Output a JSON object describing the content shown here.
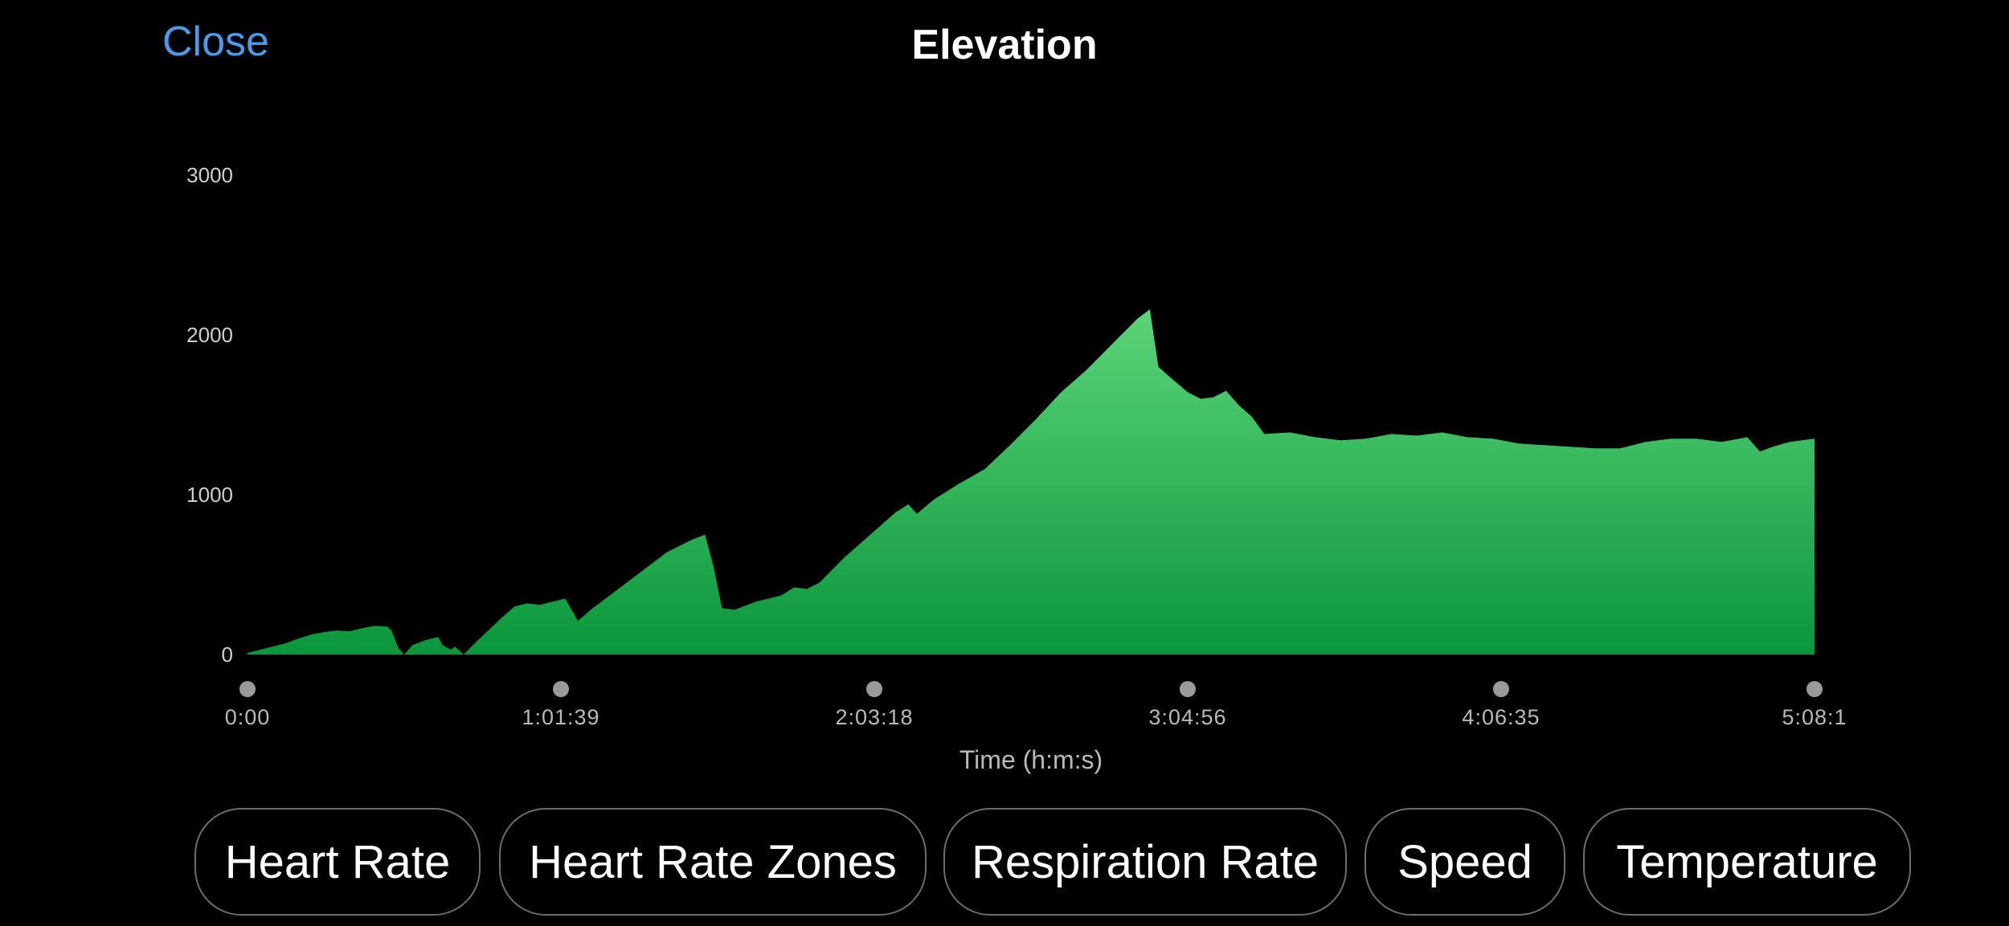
{
  "header": {
    "close_label": "Close",
    "title": "Elevation"
  },
  "tabs": [
    {
      "label": "Heart Rate"
    },
    {
      "label": "Heart Rate Zones"
    },
    {
      "label": "Respiration Rate"
    },
    {
      "label": "Speed"
    },
    {
      "label": "Temperature"
    }
  ],
  "colors": {
    "accent": "#4a9bea",
    "fill_top": "#5cd479",
    "fill_bottom": "#0b963c",
    "marker": "#9a9a9a"
  },
  "chart_data": {
    "type": "area",
    "title": "",
    "xlabel": "Time (h:m:s)",
    "ylabel": "",
    "ylim": [
      0,
      3000
    ],
    "yticks": [
      0,
      1000,
      2000,
      3000
    ],
    "xticks": [
      {
        "t": 0,
        "label": "0:00"
      },
      {
        "t": 3699,
        "label": "1:01:39"
      },
      {
        "t": 7398,
        "label": "2:03:18"
      },
      {
        "t": 11096,
        "label": "3:04:56"
      },
      {
        "t": 14795,
        "label": "4:06:35"
      },
      {
        "t": 18494,
        "label": "5:08:1"
      }
    ],
    "xlim": [
      0,
      18494
    ],
    "grid": false,
    "series": [
      {
        "values": [
          [
            0,
            10
          ],
          [
            150,
            30
          ],
          [
            300,
            50
          ],
          [
            450,
            70
          ],
          [
            600,
            100
          ],
          [
            750,
            125
          ],
          [
            900,
            140
          ],
          [
            1050,
            150
          ],
          [
            1200,
            145
          ],
          [
            1350,
            165
          ],
          [
            1500,
            180
          ],
          [
            1650,
            175
          ],
          [
            1700,
            150
          ],
          [
            1780,
            40
          ],
          [
            1850,
            0
          ],
          [
            1950,
            60
          ],
          [
            2100,
            90
          ],
          [
            2250,
            110
          ],
          [
            2300,
            60
          ],
          [
            2400,
            30
          ],
          [
            2450,
            50
          ],
          [
            2550,
            0
          ],
          [
            2700,
            80
          ],
          [
            3000,
            230
          ],
          [
            3150,
            300
          ],
          [
            3300,
            320
          ],
          [
            3450,
            310
          ],
          [
            3600,
            330
          ],
          [
            3750,
            350
          ],
          [
            3900,
            210
          ],
          [
            4050,
            280
          ],
          [
            4350,
            400
          ],
          [
            4650,
            520
          ],
          [
            4950,
            640
          ],
          [
            5250,
            720
          ],
          [
            5400,
            750
          ],
          [
            5500,
            550
          ],
          [
            5600,
            290
          ],
          [
            5750,
            280
          ],
          [
            6000,
            330
          ],
          [
            6300,
            370
          ],
          [
            6450,
            420
          ],
          [
            6600,
            410
          ],
          [
            6750,
            450
          ],
          [
            7050,
            610
          ],
          [
            7350,
            750
          ],
          [
            7650,
            890
          ],
          [
            7800,
            940
          ],
          [
            7900,
            880
          ],
          [
            8100,
            970
          ],
          [
            8400,
            1070
          ],
          [
            8700,
            1160
          ],
          [
            9000,
            1310
          ],
          [
            9300,
            1470
          ],
          [
            9600,
            1640
          ],
          [
            9900,
            1780
          ],
          [
            10200,
            1940
          ],
          [
            10500,
            2100
          ],
          [
            10650,
            2160
          ],
          [
            10750,
            1800
          ],
          [
            10900,
            1730
          ],
          [
            11100,
            1640
          ],
          [
            11250,
            1600
          ],
          [
            11400,
            1610
          ],
          [
            11550,
            1650
          ],
          [
            11700,
            1560
          ],
          [
            11850,
            1490
          ],
          [
            12000,
            1380
          ],
          [
            12300,
            1390
          ],
          [
            12600,
            1360
          ],
          [
            12900,
            1340
          ],
          [
            13200,
            1350
          ],
          [
            13500,
            1380
          ],
          [
            13800,
            1370
          ],
          [
            14100,
            1390
          ],
          [
            14400,
            1360
          ],
          [
            14700,
            1350
          ],
          [
            15000,
            1320
          ],
          [
            15300,
            1310
          ],
          [
            15600,
            1300
          ],
          [
            15900,
            1290
          ],
          [
            16200,
            1290
          ],
          [
            16500,
            1330
          ],
          [
            16800,
            1350
          ],
          [
            17100,
            1350
          ],
          [
            17400,
            1330
          ],
          [
            17700,
            1360
          ],
          [
            17850,
            1270
          ],
          [
            18000,
            1300
          ],
          [
            18200,
            1330
          ],
          [
            18494,
            1350
          ]
        ]
      }
    ]
  }
}
